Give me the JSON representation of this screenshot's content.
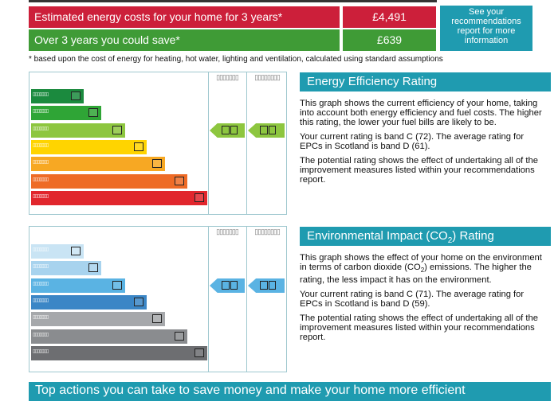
{
  "costs": {
    "estimated_label": "Estimated energy costs for your home for 3 years*",
    "estimated_value": "£4,491",
    "save_label": "Over 3 years you could save*",
    "save_value": "£639",
    "recommendations_link": "See your recommendations report for more information",
    "footnote": "* based upon the cost of energy for heating, hot water, lighting and ventilation, calculated using standard assumptions"
  },
  "energy_rating": {
    "title": "Energy Efficiency Rating",
    "current_band": "C",
    "current_score": 72,
    "potential_score": 79,
    "colors": [
      "#1b8a3e",
      "#2fa536",
      "#8dc63f",
      "#ffd400",
      "#f7a823",
      "#ee6b26",
      "#e1262d"
    ],
    "paragraphs": [
      "This graph shows the current efficiency of your home, taking into account both energy efficiency and fuel costs. The higher this rating, the lower your fuel bills are likely to be.",
      "Your current rating is band C (72). The average rating for EPCs in Scotland is band D (61).",
      "The potential rating shows the effect of undertaking all of the improvement measures listed within your recommendations report."
    ]
  },
  "environmental_rating": {
    "title_prefix": "Environmental Impact (CO",
    "title_sub": "2",
    "title_suffix": ") Rating",
    "current_band": "C",
    "current_score": 71,
    "potential_score": 76,
    "colors": [
      "#c9e4f4",
      "#a8d3ee",
      "#5ab3e3",
      "#3b86c6",
      "#a6a8ab",
      "#8a8c8f",
      "#6d6e71"
    ],
    "p1_before": "This graph shows the effect of your home on the environment in terms of carbon dioxide (CO",
    "p1_sub": "2",
    "p1_after": ") emissions. The higher the rating, the less impact it has on the environment.",
    "p2": "Your current rating is band C (71). The average rating for EPCs in Scotland is band D (59).",
    "p3": "The potential rating shows the effect of undertaking all of the improvement measures listed within your recommendations report."
  },
  "banner": "Top actions you can take to save money and make your home more efficient"
}
